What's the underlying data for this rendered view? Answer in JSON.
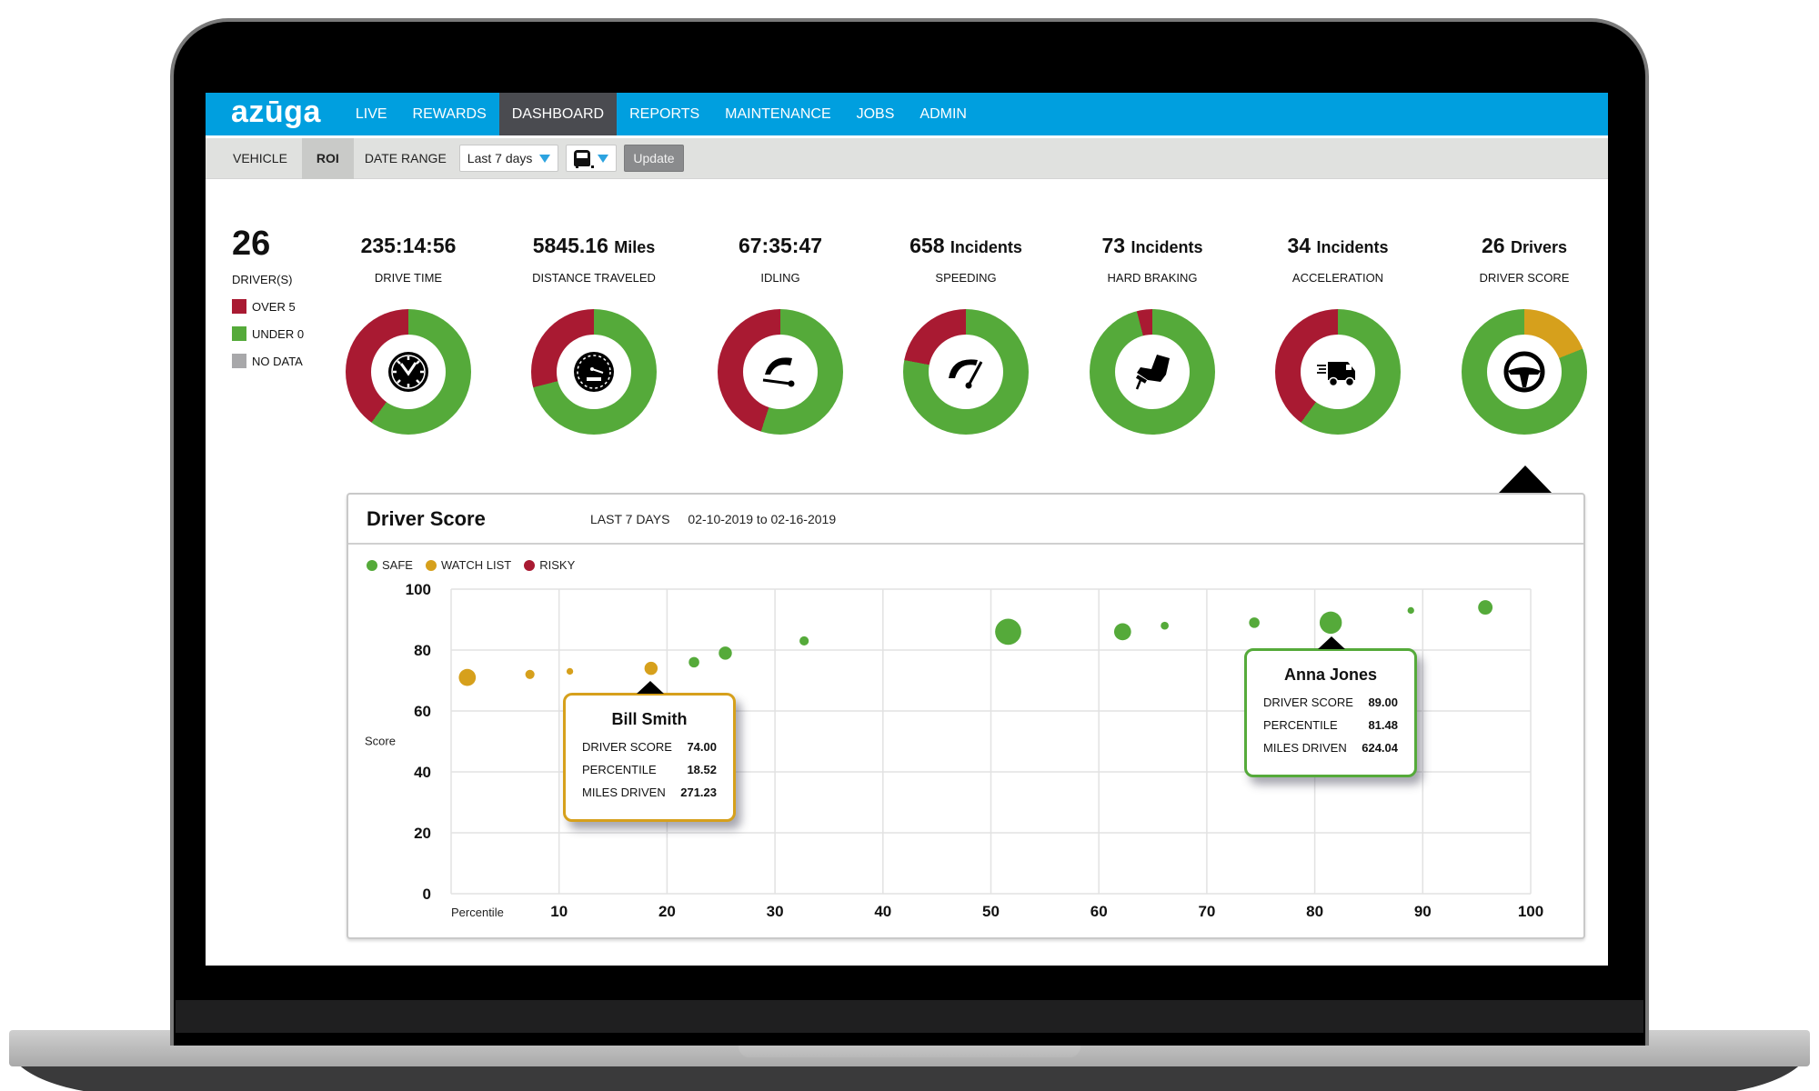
{
  "app": {
    "logo": "azūga",
    "nav": [
      {
        "label": "LIVE",
        "active": false
      },
      {
        "label": "REWARDS",
        "active": false
      },
      {
        "label": "DASHBOARD",
        "active": true
      },
      {
        "label": "REPORTS",
        "active": false
      },
      {
        "label": "MAINTENANCE",
        "active": false
      },
      {
        "label": "JOBS",
        "active": false
      },
      {
        "label": "ADMIN",
        "active": false
      }
    ]
  },
  "toolbar": {
    "tabs": [
      {
        "label": "VEHICLE",
        "active": false
      },
      {
        "label": "ROI",
        "active": true
      }
    ],
    "date_range_label": "DATE RANGE",
    "date_range_value": "Last 7 days",
    "vehicle_filter_icon": "bus-icon",
    "update_label": "Update"
  },
  "summary": {
    "drivers_count": "26",
    "drivers_label": "DRIVER(S)",
    "legend": [
      {
        "label": "OVER 5",
        "color": "#a91a32"
      },
      {
        "label": "UNDER 0",
        "color": "#55aa3a"
      },
      {
        "label": "NO DATA",
        "color": "#a8a8aa"
      }
    ]
  },
  "colors": {
    "red": "#a91a32",
    "green": "#55aa3a",
    "amber": "#d6a01c",
    "nav_blue": "#009fdf",
    "nav_active": "#4a4b50"
  },
  "stats": [
    {
      "value": "235:14:56",
      "unit": "",
      "label": "DRIVE TIME",
      "icon": "clock-icon",
      "red_pct": 40,
      "amber_pct": 0
    },
    {
      "value": "5845.16",
      "unit": "Miles",
      "label": "DISTANCE TRAVELED",
      "icon": "odometer-icon",
      "red_pct": 29,
      "amber_pct": 0
    },
    {
      "value": "67:35:47",
      "unit": "",
      "label": "IDLING",
      "icon": "idle-gauge-icon",
      "red_pct": 45,
      "amber_pct": 0
    },
    {
      "value": "658",
      "unit": "Incidents",
      "label": "SPEEDING",
      "icon": "speedometer-icon",
      "red_pct": 22,
      "amber_pct": 0
    },
    {
      "value": "73",
      "unit": "Incidents",
      "label": "HARD BRAKING",
      "icon": "brake-pedal-icon",
      "red_pct": 4,
      "amber_pct": 0
    },
    {
      "value": "34",
      "unit": "Incidents",
      "label": "ACCELERATION",
      "icon": "fast-van-icon",
      "red_pct": 40,
      "amber_pct": 0
    },
    {
      "value": "26",
      "unit": "Drivers",
      "label": "DRIVER SCORE",
      "icon": "steering-wheel-icon",
      "red_pct": 0,
      "amber_pct": 19
    }
  ],
  "driver_score_card": {
    "title": "Driver Score",
    "range_label": "LAST 7 DAYS",
    "dates": "02-10-2019 to 02-16-2019",
    "legend": [
      {
        "label": "SAFE",
        "color": "#55aa3a"
      },
      {
        "label": "WATCH LIST",
        "color": "#d6a01c"
      },
      {
        "label": "RISKY",
        "color": "#a91a32"
      }
    ],
    "y_axis_label": "Score",
    "x_axis_label": "Percentile",
    "tooltips": [
      {
        "name": "Bill Smith",
        "driver_score_label": "DRIVER SCORE",
        "driver_score": "74.00",
        "percentile_label": "PERCENTILE",
        "percentile": "18.52",
        "miles_label": "MILES DRIVEN",
        "miles": "271.23",
        "border": "#d6a01c"
      },
      {
        "name": "Anna Jones",
        "driver_score_label": "DRIVER SCORE",
        "driver_score": "89.00",
        "percentile_label": "PERCENTILE",
        "percentile": "81.48",
        "miles_label": "MILES DRIVEN",
        "miles": "624.04",
        "border": "#55aa3a"
      }
    ]
  },
  "chart_data": {
    "type": "scatter",
    "title": "Driver Score",
    "xlabel": "Percentile",
    "ylabel": "Score",
    "xlim": [
      0,
      100
    ],
    "ylim": [
      0,
      100
    ],
    "x_ticks": [
      10,
      20,
      30,
      40,
      50,
      60,
      70,
      80,
      90,
      100
    ],
    "y_ticks": [
      0,
      20,
      40,
      60,
      80,
      100
    ],
    "grid": true,
    "legend": [
      "SAFE",
      "WATCH LIST",
      "RISKY"
    ],
    "legend_position": "top-left",
    "series": [
      {
        "name": "WATCH LIST",
        "color": "#d6a01c",
        "points": [
          {
            "x": 1.5,
            "y": 71,
            "size": 11
          },
          {
            "x": 7.3,
            "y": 72,
            "size": 5
          },
          {
            "x": 11.0,
            "y": 73,
            "size": 3
          },
          {
            "x": 18.52,
            "y": 74,
            "size": 8
          }
        ]
      },
      {
        "name": "SAFE",
        "color": "#55aa3a",
        "points": [
          {
            "x": 22.5,
            "y": 76,
            "size": 6
          },
          {
            "x": 25.4,
            "y": 79,
            "size": 8
          },
          {
            "x": 32.7,
            "y": 83,
            "size": 5
          },
          {
            "x": 51.6,
            "y": 86,
            "size": 18
          },
          {
            "x": 62.2,
            "y": 86,
            "size": 11
          },
          {
            "x": 66.1,
            "y": 88,
            "size": 4
          },
          {
            "x": 74.4,
            "y": 89,
            "size": 6
          },
          {
            "x": 81.48,
            "y": 89,
            "size": 15
          },
          {
            "x": 88.9,
            "y": 93,
            "size": 3
          },
          {
            "x": 95.8,
            "y": 94,
            "size": 9
          }
        ]
      },
      {
        "name": "RISKY",
        "color": "#a91a32",
        "points": []
      }
    ],
    "annotations": [
      "Bill Smith: score 74.00, percentile 18.52, miles 271.23",
      "Anna Jones: score 89.00, percentile 81.48, miles 624.04"
    ]
  }
}
